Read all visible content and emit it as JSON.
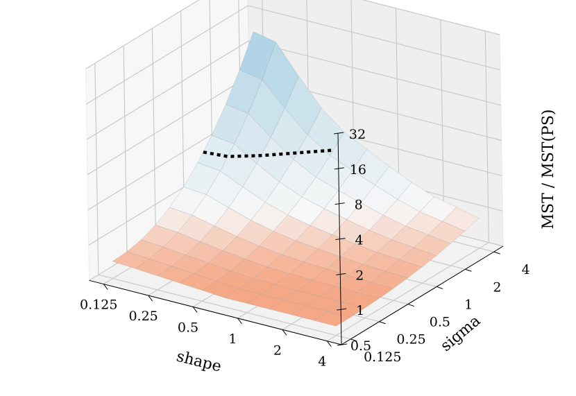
{
  "chart_data": {
    "type": "surface3d",
    "title": "",
    "xlabel": "shape",
    "ylabel": "sigma",
    "zlabel": "MST / MST(PS)",
    "x_ticks": [
      "0.125",
      "0.25",
      "0.5",
      "1",
      "2",
      "4"
    ],
    "y_ticks": [
      "0.125",
      "0.25",
      "0.5",
      "1",
      "2",
      "4"
    ],
    "z_ticks": [
      "0.5",
      "1",
      "2",
      "4",
      "8",
      "16",
      "32"
    ],
    "z_scale": "log2",
    "x_scale": "log2",
    "y_scale": "log2",
    "xlim": [
      0.1,
      5
    ],
    "ylim": [
      0.1,
      5
    ],
    "zlim": [
      0.5,
      32
    ],
    "grid": true,
    "colormap": "RdBu diverging, centered at 1",
    "colors": {
      "high": "#a9d1e4",
      "mid": "#f7f7f7",
      "low": "#f5a886",
      "contour": "#000000"
    },
    "contour": {
      "level": 2,
      "style": "dotted"
    },
    "shape_grid": [
      0.125,
      0.177,
      0.25,
      0.354,
      0.5,
      0.707,
      1,
      1.414,
      2,
      2.828,
      4
    ],
    "sigma_grid": [
      0.125,
      0.177,
      0.25,
      0.354,
      0.5,
      0.707,
      1,
      1.414,
      2,
      2.828,
      4
    ],
    "z_at_max_sigma": [
      [
        11.5,
        10.5,
        6.0,
        3.6,
        2.5,
        2.0,
        1.6,
        1.3,
        1.1,
        1.0,
        0.9
      ]
    ],
    "z_at_min_sigma": [
      [
        0.7,
        0.68,
        0.66,
        0.64,
        0.62,
        0.6,
        0.6,
        0.6,
        0.6,
        0.6,
        0.6
      ]
    ]
  }
}
